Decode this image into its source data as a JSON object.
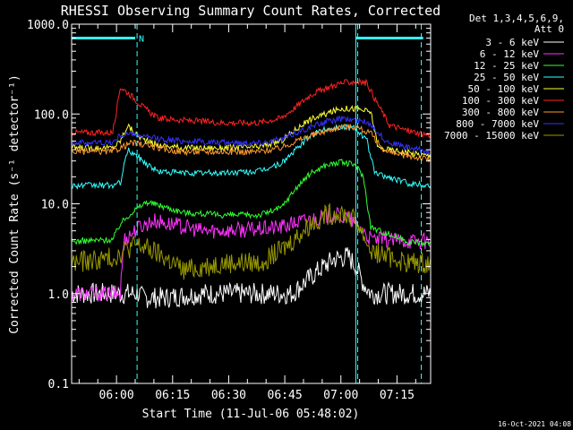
{
  "chart_data": {
    "type": "line",
    "title": "RHESSI Observing Summary Count Rates, Corrected",
    "xlabel": "Start Time (11-Jul-06 05:48:02)",
    "ylabel": "Corrected Count Rate (s⁻¹ detector⁻¹)",
    "y_scale": "log",
    "ylim": [
      0.1,
      1000
    ],
    "xlim_minutes_after_0548": [
      0,
      96
    ],
    "x_ticks": [
      "06:00",
      "06:15",
      "06:30",
      "06:45",
      "07:00",
      "07:15"
    ],
    "x_tick_minutes": [
      12,
      27,
      42,
      57,
      72,
      87
    ],
    "y_ticks": [
      "0.1",
      "1.0",
      "10.0",
      "100.0",
      "1000.0"
    ],
    "y_tick_values": [
      0.1,
      1,
      10,
      100,
      1000
    ],
    "legend_header": [
      "Det 1,3,4,5,6,9,",
      "Att 0"
    ],
    "legend_position": "right",
    "x_unit": "minutes after 05:48:02",
    "series": [
      {
        "name": "3 - 6 keV",
        "color": "#ffffff",
        "x": [
          0,
          11,
          18,
          19,
          25,
          35,
          50,
          59,
          62,
          66,
          70,
          74,
          76,
          78,
          80,
          96
        ],
        "y": [
          1.0,
          1.0,
          1.0,
          0.9,
          0.9,
          1.0,
          1.0,
          1.0,
          1.3,
          1.8,
          2.4,
          2.6,
          2.0,
          1.3,
          1.0,
          1.0
        ]
      },
      {
        "name": "6 - 12 keV",
        "color": "#ff33ff",
        "x": [
          0,
          13,
          14,
          18,
          22,
          26,
          35,
          50,
          56,
          62,
          66,
          70,
          74,
          77,
          80,
          96
        ],
        "y": [
          1.0,
          1.0,
          4.0,
          5.5,
          6.5,
          6.0,
          5.0,
          5.2,
          5.5,
          6.5,
          7.0,
          7.5,
          7.0,
          5.5,
          4.0,
          3.8
        ]
      },
      {
        "name": "12 - 25 keV",
        "color": "#33ff33",
        "x": [
          0,
          11,
          13,
          16,
          20,
          24,
          30,
          40,
          50,
          56,
          60,
          64,
          68,
          72,
          76,
          78,
          80,
          90,
          96
        ],
        "y": [
          3.8,
          4.0,
          6.0,
          8.0,
          10.5,
          9.5,
          8.0,
          7.5,
          7.5,
          9.0,
          15.0,
          22.0,
          27.0,
          29.0,
          27.0,
          20.0,
          5.5,
          3.8,
          3.6
        ]
      },
      {
        "name": "25 - 50 keV",
        "color": "#33ffff",
        "x": [
          0,
          11,
          13,
          15,
          17,
          20,
          23,
          30,
          40,
          50,
          56,
          60,
          64,
          68,
          72,
          76,
          79,
          81,
          90,
          96
        ],
        "y": [
          16,
          16,
          17,
          40,
          35,
          28,
          23,
          22,
          22,
          23,
          28,
          40,
          58,
          68,
          72,
          70,
          50,
          22,
          17,
          16
        ]
      },
      {
        "name": "50 - 100 keV",
        "color": "#ffff33",
        "x": [
          0,
          11,
          13,
          15,
          17,
          20,
          23,
          30,
          40,
          50,
          56,
          60,
          64,
          68,
          72,
          76,
          80,
          82,
          90,
          96
        ],
        "y": [
          42,
          42,
          50,
          75,
          60,
          50,
          45,
          42,
          42,
          43,
          50,
          68,
          88,
          100,
          115,
          115,
          105,
          42,
          37,
          34
        ]
      },
      {
        "name": "100 - 300 keV",
        "color": "#ff2222",
        "x": [
          0,
          11,
          13,
          16,
          19,
          23,
          30,
          40,
          50,
          56,
          60,
          64,
          68,
          72,
          76,
          79,
          81,
          85,
          90,
          96
        ],
        "y": [
          62,
          62,
          200,
          160,
          120,
          90,
          85,
          80,
          80,
          90,
          120,
          165,
          195,
          220,
          230,
          220,
          150,
          75,
          65,
          58
        ]
      },
      {
        "name": "300 - 800 keV",
        "color": "#ff9933",
        "x": [
          0,
          11,
          13,
          16,
          20,
          25,
          30,
          40,
          50,
          56,
          60,
          64,
          68,
          72,
          76,
          80,
          84,
          90,
          96
        ],
        "y": [
          38,
          38,
          42,
          48,
          45,
          40,
          38,
          38,
          38,
          42,
          50,
          58,
          65,
          72,
          72,
          60,
          38,
          34,
          31
        ]
      },
      {
        "name": "800 - 7000 keV",
        "color": "#3333ff",
        "x": [
          0,
          11,
          13,
          16,
          20,
          25,
          30,
          40,
          50,
          56,
          60,
          64,
          68,
          72,
          76,
          80,
          84,
          90,
          96
        ],
        "y": [
          48,
          48,
          58,
          60,
          55,
          52,
          50,
          48,
          48,
          52,
          62,
          72,
          82,
          88,
          86,
          78,
          50,
          42,
          38
        ]
      },
      {
        "name": "7000 - 15000 keV",
        "color": "#999900",
        "x": [
          0,
          11,
          14,
          17,
          20,
          25,
          30,
          40,
          50,
          56,
          60,
          64,
          68,
          72,
          76,
          78,
          80,
          90,
          96
        ],
        "y": [
          2.2,
          2.5,
          3.0,
          3.5,
          3.2,
          2.5,
          1.8,
          2.2,
          2.2,
          3.0,
          4.2,
          6.0,
          7.5,
          8.0,
          6.5,
          4.5,
          3.0,
          2.2,
          2.2
        ]
      }
    ],
    "markers": {
      "solid_lines_minutes": [
        0,
        76
      ],
      "dashed_lines_minutes": [
        17.5,
        76.5,
        93.5
      ],
      "horizontal_bars": [
        {
          "from": 0,
          "to": 17,
          "y": 700,
          "label": "N"
        },
        {
          "from": 76,
          "to": 94,
          "y": 700,
          "label": ""
        }
      ],
      "marker_color": "#33ffff"
    },
    "grid": false,
    "footer_date": "16-Oct-2021 04:08"
  }
}
